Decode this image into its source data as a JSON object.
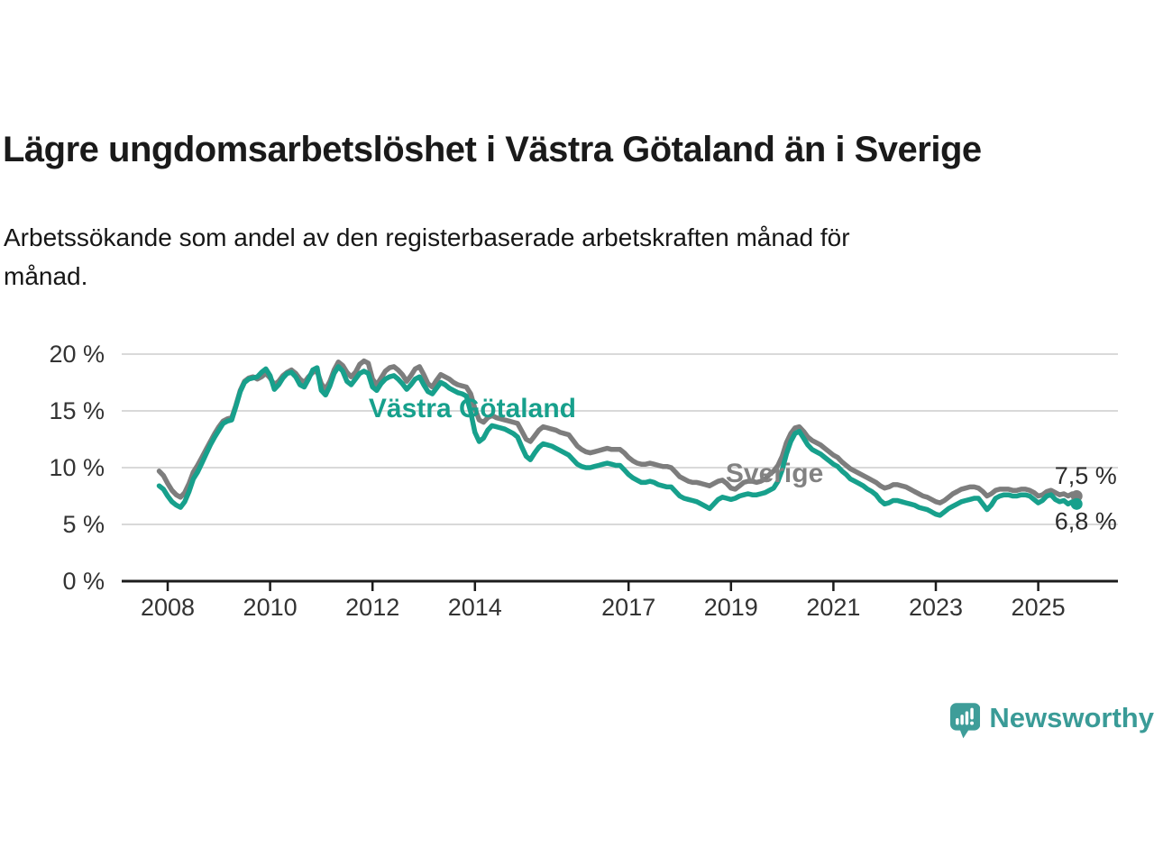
{
  "header": {
    "title": "Lägre ungdomsarbetslöshet i Västra Götaland än i Sverige",
    "subtitle_line1": "Arbetssökande som andel av den registerbaserade arbetskraften månad för",
    "subtitle_line2": "månad."
  },
  "branding": {
    "name": "Newsworthy",
    "icon_color": "#3e9d99",
    "text_color": "#3a9b97"
  },
  "chart_data": {
    "type": "line",
    "title": "Lägre ungdomsarbetslöshet i Västra Götaland än i Sverige",
    "subtitle": "Arbetssökande som andel av den registerbaserade arbetskraften månad för månad.",
    "unit": "%",
    "grid": "horizontal",
    "legend_position": "inline-labels",
    "x_axis": {
      "start_year_decimal": 2007.8333,
      "step_months": 1,
      "ticks": [
        2008,
        2010,
        2012,
        2014,
        2017,
        2019,
        2021,
        2023,
        2025
      ],
      "tick_labels": [
        "2008",
        "2010",
        "2012",
        "2014",
        "2017",
        "2019",
        "2021",
        "2023",
        "2025"
      ]
    },
    "y_axis": {
      "ticks": [
        0,
        5,
        10,
        15,
        20
      ],
      "tick_labels": [
        "0 %",
        "5 %",
        "10 %",
        "15 %",
        "20 %"
      ],
      "range": [
        0,
        21
      ]
    },
    "series": [
      {
        "name": "Sverige",
        "color": "#7d7d7d",
        "end_label": "7,5 %",
        "last_value": 7.5,
        "values": [
          9.7,
          9.3,
          8.6,
          8.0,
          7.6,
          7.4,
          7.8,
          8.6,
          9.6,
          10.2,
          10.9,
          11.6,
          12.3,
          13.0,
          13.6,
          14.1,
          14.3,
          14.4,
          15.5,
          16.8,
          17.6,
          17.9,
          18.0,
          17.8,
          18.0,
          18.3,
          17.9,
          17.3,
          17.6,
          18.1,
          18.4,
          18.6,
          18.3,
          17.8,
          17.5,
          18.0,
          18.4,
          18.5,
          17.4,
          16.9,
          17.6,
          18.6,
          19.3,
          19.0,
          18.4,
          18.0,
          18.4,
          19.1,
          19.4,
          19.2,
          17.8,
          17.3,
          17.9,
          18.5,
          18.8,
          18.9,
          18.6,
          18.2,
          17.6,
          18.1,
          18.7,
          18.9,
          18.2,
          17.4,
          17.1,
          17.7,
          18.2,
          18.0,
          17.8,
          17.5,
          17.3,
          17.2,
          17.1,
          16.5,
          15.2,
          14.2,
          14.0,
          14.4,
          14.6,
          14.4,
          14.3,
          14.2,
          14.1,
          14.0,
          13.9,
          13.2,
          12.5,
          12.3,
          12.8,
          13.3,
          13.6,
          13.5,
          13.4,
          13.3,
          13.1,
          13.0,
          12.9,
          12.4,
          11.9,
          11.6,
          11.4,
          11.3,
          11.4,
          11.5,
          11.6,
          11.7,
          11.6,
          11.6,
          11.6,
          11.3,
          10.9,
          10.6,
          10.4,
          10.3,
          10.3,
          10.4,
          10.3,
          10.2,
          10.1,
          10.1,
          10.0,
          9.6,
          9.2,
          9.0,
          8.8,
          8.7,
          8.7,
          8.6,
          8.5,
          8.4,
          8.6,
          8.8,
          8.9,
          8.6,
          8.2,
          8.1,
          8.4,
          8.7,
          8.8,
          8.8,
          8.7,
          8.8,
          9.0,
          9.4,
          9.7,
          10.2,
          11.0,
          12.2,
          13.0,
          13.5,
          13.6,
          13.2,
          12.7,
          12.4,
          12.2,
          12.0,
          11.7,
          11.4,
          11.1,
          10.9,
          10.5,
          10.2,
          9.9,
          9.7,
          9.5,
          9.3,
          9.1,
          8.9,
          8.7,
          8.4,
          8.2,
          8.3,
          8.5,
          8.5,
          8.4,
          8.3,
          8.1,
          7.9,
          7.7,
          7.5,
          7.4,
          7.2,
          7.0,
          6.9,
          7.1,
          7.4,
          7.7,
          7.9,
          8.1,
          8.2,
          8.3,
          8.3,
          8.2,
          7.9,
          7.5,
          7.7,
          8.0,
          8.1,
          8.1,
          8.1,
          8.0,
          8.0,
          8.1,
          8.1,
          8.0,
          7.8,
          7.5,
          7.6,
          7.9,
          8.0,
          7.8,
          7.6,
          7.7,
          7.5,
          7.7,
          7.5
        ]
      },
      {
        "name": "Västra Götaland",
        "color": "#17a08c",
        "end_label": "6,8 %",
        "last_value": 6.8,
        "values": [
          8.4,
          8.1,
          7.5,
          7.0,
          6.7,
          6.5,
          7.0,
          7.9,
          9.0,
          9.6,
          10.4,
          11.2,
          12.0,
          12.7,
          13.3,
          13.9,
          14.1,
          14.2,
          15.4,
          16.7,
          17.5,
          17.8,
          17.9,
          18.0,
          18.4,
          18.7,
          18.1,
          16.9,
          17.3,
          17.9,
          18.3,
          18.4,
          18.0,
          17.3,
          17.1,
          17.8,
          18.6,
          18.8,
          16.8,
          16.4,
          17.2,
          18.3,
          18.9,
          18.5,
          17.6,
          17.3,
          17.8,
          18.3,
          18.5,
          18.3,
          17.1,
          16.8,
          17.4,
          17.8,
          18.0,
          18.1,
          17.8,
          17.4,
          16.9,
          17.3,
          17.8,
          18.0,
          17.3,
          16.7,
          16.5,
          17.0,
          17.5,
          17.3,
          17.0,
          16.8,
          16.6,
          16.5,
          16.3,
          14.9,
          13.1,
          12.3,
          12.6,
          13.3,
          13.7,
          13.6,
          13.5,
          13.4,
          13.2,
          13.0,
          12.7,
          11.8,
          11.0,
          10.7,
          11.3,
          11.8,
          12.1,
          12.0,
          11.9,
          11.7,
          11.5,
          11.3,
          11.1,
          10.7,
          10.3,
          10.1,
          10.0,
          10.0,
          10.1,
          10.2,
          10.3,
          10.4,
          10.3,
          10.2,
          10.2,
          9.8,
          9.4,
          9.1,
          8.9,
          8.7,
          8.7,
          8.8,
          8.7,
          8.5,
          8.4,
          8.3,
          8.3,
          7.9,
          7.5,
          7.3,
          7.2,
          7.1,
          7.0,
          6.8,
          6.6,
          6.4,
          6.8,
          7.2,
          7.4,
          7.3,
          7.2,
          7.3,
          7.5,
          7.6,
          7.7,
          7.6,
          7.6,
          7.7,
          7.8,
          8.0,
          8.2,
          8.8,
          9.8,
          11.2,
          12.3,
          13.0,
          13.2,
          12.6,
          12.0,
          11.6,
          11.4,
          11.2,
          10.9,
          10.6,
          10.3,
          10.1,
          9.7,
          9.4,
          9.0,
          8.8,
          8.6,
          8.4,
          8.1,
          7.9,
          7.6,
          7.1,
          6.8,
          6.9,
          7.1,
          7.1,
          7.0,
          6.9,
          6.8,
          6.7,
          6.5,
          6.4,
          6.3,
          6.1,
          5.9,
          5.8,
          6.1,
          6.4,
          6.6,
          6.8,
          7.0,
          7.1,
          7.2,
          7.3,
          7.3,
          6.8,
          6.3,
          6.7,
          7.3,
          7.5,
          7.6,
          7.6,
          7.5,
          7.5,
          7.6,
          7.6,
          7.5,
          7.2,
          6.9,
          7.1,
          7.5,
          7.6,
          7.2,
          7.0,
          7.1,
          6.8,
          7.0,
          6.8
        ]
      }
    ],
    "annotations": [
      {
        "id": "series-label-vastra-gotaland",
        "text": "Västra Götaland",
        "x": 2013.95,
        "y": 15.3,
        "color": "#17a08c",
        "size": 30,
        "weight": "bold",
        "anchor": "middle"
      },
      {
        "id": "series-label-sverige",
        "text": "Sverige",
        "x": 2019.85,
        "y": 9.6,
        "color": "#828282",
        "size": 30,
        "weight": "bold",
        "anchor": "middle"
      },
      {
        "id": "end-label-sverige",
        "text": "7,5 %",
        "x": 2025.32,
        "y": 9.35,
        "color": "#2b2b2b",
        "size": 27,
        "weight": "normal",
        "anchor": "start"
      },
      {
        "id": "end-label-vastra-gotaland",
        "text": "6,8 %",
        "x": 2025.32,
        "y": 5.35,
        "color": "#2b2b2b",
        "size": 27,
        "weight": "normal",
        "anchor": "start"
      }
    ]
  }
}
